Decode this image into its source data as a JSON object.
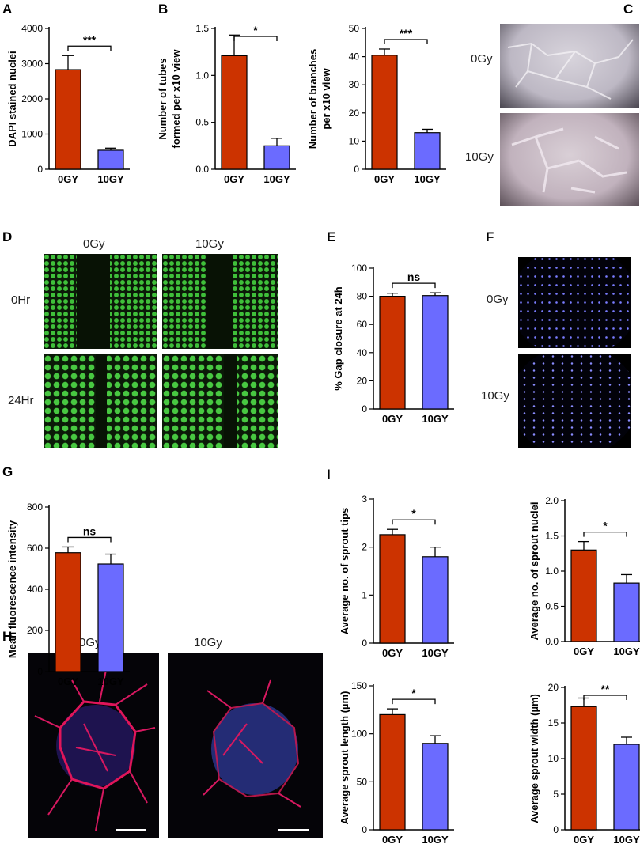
{
  "colors": {
    "bar_0gy": "#cc3300",
    "bar_10gy": "#6b6bff",
    "axis": "#000000"
  },
  "panels": {
    "A": "A",
    "B": "B",
    "C": "C",
    "D": "D",
    "E": "E",
    "F": "F",
    "G": "G",
    "H": "H",
    "I": "I"
  },
  "micro_labels": {
    "c_top": "0Gy",
    "c_bottom": "10Gy",
    "d_col1": "0Gy",
    "d_col2": "10Gy",
    "d_row1": "0Hr",
    "d_row2": "24Hr",
    "f_top": "0Gy",
    "f_bottom": "10Gy",
    "h_col1": "0Gy",
    "h_col2": "10Gy"
  },
  "chart_data": [
    {
      "id": "A",
      "type": "bar",
      "categories": [
        "0GY",
        "10GY"
      ],
      "values": [
        2830,
        540
      ],
      "errors": [
        400,
        60
      ],
      "ylabel": "DAPI stained nuclei",
      "ylim": [
        0,
        4000
      ],
      "yticks": [
        "0",
        "1000",
        "2000",
        "3000",
        "4000"
      ],
      "significance": "***"
    },
    {
      "id": "B1",
      "type": "bar",
      "categories": [
        "0GY",
        "10GY"
      ],
      "values": [
        1.21,
        0.25
      ],
      "errors": [
        0.22,
        0.08
      ],
      "ylabel": [
        "Number of tubes",
        "formed per x10 view"
      ],
      "ylim": [
        0,
        1.5
      ],
      "yticks": [
        "0.0",
        "0.5",
        "1.0",
        "1.5"
      ],
      "significance": "*"
    },
    {
      "id": "B2",
      "type": "bar",
      "categories": [
        "0GY",
        "10GY"
      ],
      "values": [
        40.5,
        13
      ],
      "errors": [
        2.2,
        1.2
      ],
      "ylabel": [
        "Number of branches",
        "per x10 view"
      ],
      "ylim": [
        0,
        50
      ],
      "yticks": [
        "0",
        "10",
        "20",
        "30",
        "40",
        "50"
      ],
      "significance": "***"
    },
    {
      "id": "E",
      "type": "bar",
      "categories": [
        "0GY",
        "10GY"
      ],
      "values": [
        80,
        80.5
      ],
      "errors": [
        2.2,
        2
      ],
      "ylabel": "% Gap closure at 24h",
      "ylim": [
        0,
        100
      ],
      "yticks": [
        "0",
        "20",
        "40",
        "60",
        "80",
        "100"
      ],
      "significance": "ns"
    },
    {
      "id": "G",
      "type": "bar",
      "categories": [
        "0GY",
        "10GY"
      ],
      "values": [
        578,
        523
      ],
      "errors": [
        28,
        48
      ],
      "ylabel": "Mean fluorescence intensity",
      "ylim": [
        0,
        800
      ],
      "yticks": [
        "0",
        "200",
        "400",
        "600",
        "800"
      ],
      "significance": "ns"
    },
    {
      "id": "I1",
      "type": "bar",
      "categories": [
        "0GY",
        "10GY"
      ],
      "values": [
        2.26,
        1.8
      ],
      "errors": [
        0.11,
        0.2
      ],
      "ylabel": "Average no. of sprout tips",
      "ylim": [
        0,
        3
      ],
      "yticks": [
        "0",
        "1",
        "2",
        "3"
      ],
      "significance": "*"
    },
    {
      "id": "I2",
      "type": "bar",
      "categories": [
        "0GY",
        "10GY"
      ],
      "values": [
        1.3,
        0.83
      ],
      "errors": [
        0.12,
        0.12
      ],
      "ylabel": "Average no. of sprout nuclei",
      "ylim": [
        0,
        2
      ],
      "yticks": [
        "0.0",
        "0.5",
        "1.0",
        "1.5",
        "2.0"
      ],
      "significance": "*"
    },
    {
      "id": "I3",
      "type": "bar",
      "categories": [
        "0GY",
        "10GY"
      ],
      "values": [
        120,
        90
      ],
      "errors": [
        6,
        8
      ],
      "ylabel": "Average sprout length (µm)",
      "ylim": [
        0,
        150
      ],
      "yticks": [
        "0",
        "50",
        "100",
        "150"
      ],
      "significance": "*"
    },
    {
      "id": "I4",
      "type": "bar",
      "categories": [
        "0GY",
        "10GY"
      ],
      "values": [
        17.3,
        12
      ],
      "errors": [
        1.2,
        1
      ],
      "ylabel": "Average sprout width (µm)",
      "ylim": [
        0,
        20
      ],
      "yticks": [
        "0",
        "5",
        "10",
        "15",
        "20"
      ],
      "significance": "**"
    }
  ]
}
